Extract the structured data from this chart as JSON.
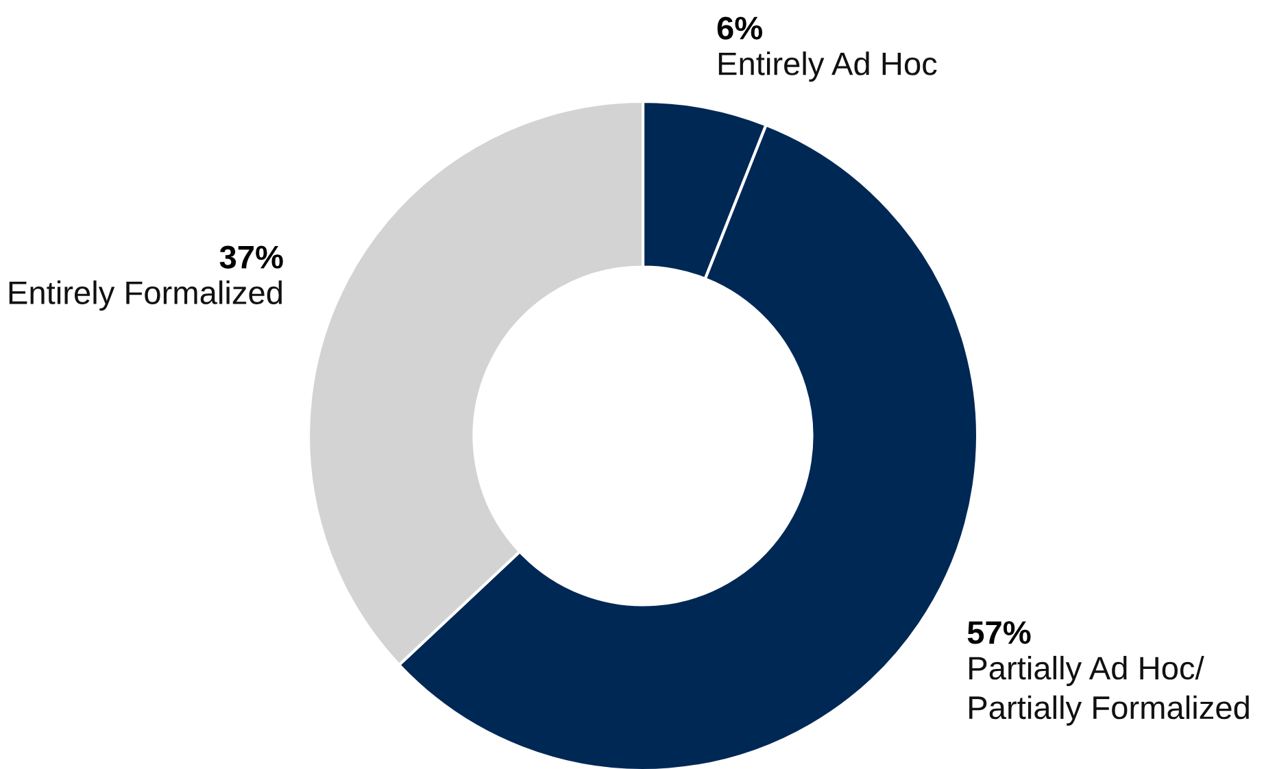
{
  "chart_data": {
    "type": "donut",
    "categories": [
      "Entirely Ad Hoc",
      "Partially Ad Hoc/\nPartially Formalized",
      "Entirely Formalized"
    ],
    "values": [
      6,
      57,
      37
    ],
    "colors": [
      "#002855",
      "#002855",
      "#d3d3d3"
    ],
    "value_labels": [
      "6%",
      "57%",
      "37%"
    ],
    "legend": false
  }
}
